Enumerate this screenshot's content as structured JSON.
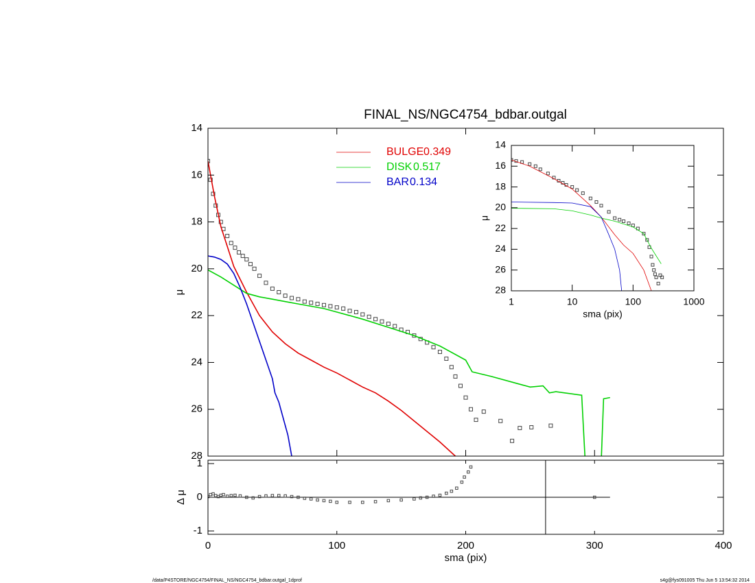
{
  "chart_data": [
    {
      "type": "line",
      "title": "FINAL_NS/NGC4754_bdbar.outgal",
      "ylabel": "μ",
      "xlim": [
        0,
        400
      ],
      "xticks": [
        0,
        100,
        200,
        300,
        400
      ],
      "ylim": [
        28,
        14
      ],
      "yticks": [
        14,
        16,
        18,
        20,
        22,
        24,
        26,
        28
      ],
      "points": {
        "x": [
          0,
          2,
          4,
          6,
          8,
          10,
          12,
          15,
          18,
          21,
          24,
          27,
          30,
          33,
          36,
          40,
          45,
          50,
          55,
          60,
          65,
          70,
          75,
          80,
          85,
          90,
          95,
          100,
          105,
          110,
          115,
          120,
          125,
          130,
          135,
          140,
          145,
          150,
          155,
          160,
          165,
          170,
          175,
          180,
          185,
          189,
          192,
          196,
          200,
          204,
          208,
          214,
          227,
          236,
          242,
          251,
          266
        ],
        "values": [
          15.4,
          16.2,
          16.8,
          17.3,
          17.7,
          18.0,
          18.3,
          18.6,
          18.9,
          19.1,
          19.3,
          19.45,
          19.6,
          19.8,
          20.0,
          20.3,
          20.6,
          20.85,
          21.0,
          21.15,
          21.25,
          21.3,
          21.4,
          21.45,
          21.5,
          21.55,
          21.6,
          21.65,
          21.7,
          21.8,
          21.85,
          21.95,
          22.05,
          22.15,
          22.25,
          22.35,
          22.45,
          22.6,
          22.7,
          22.85,
          23.0,
          23.15,
          23.35,
          23.55,
          23.84,
          24.2,
          24.6,
          25.0,
          25.5,
          26.0,
          26.45,
          26.1,
          26.5,
          27.35,
          26.8,
          26.77,
          26.7
        ]
      },
      "series": [
        {
          "name": "BULGE",
          "fraction": 0.349,
          "color": "#e00000",
          "x": [
            0,
            5,
            10,
            20,
            30,
            40,
            50,
            60,
            70,
            80,
            90,
            100,
            110,
            120,
            130,
            140,
            150,
            160,
            170,
            180,
            190,
            192
          ],
          "values": [
            15.4,
            16.9,
            18.2,
            19.9,
            21.0,
            22.0,
            22.7,
            23.2,
            23.6,
            23.9,
            24.2,
            24.45,
            24.75,
            25.05,
            25.3,
            25.65,
            26.05,
            26.5,
            26.95,
            27.4,
            27.9,
            28.0
          ]
        },
        {
          "name": "DISK",
          "fraction": 0.517,
          "color": "#00d000",
          "x": [
            0,
            10,
            20,
            30,
            40,
            50,
            60,
            70,
            80,
            90,
            100,
            120,
            140,
            160,
            180,
            200,
            205,
            220,
            240,
            250,
            260,
            265,
            270,
            290,
            293,
            null,
            305,
            307,
            312
          ],
          "values": [
            20.05,
            20.35,
            20.7,
            21.05,
            21.2,
            21.3,
            21.4,
            21.5,
            21.6,
            21.7,
            21.85,
            22.15,
            22.5,
            22.85,
            23.3,
            23.9,
            24.4,
            24.6,
            24.9,
            25.05,
            25.0,
            25.3,
            25.25,
            25.4,
            28.5,
            null,
            28.5,
            25.55,
            25.5
          ]
        },
        {
          "name": "BAR",
          "fraction": 0.134,
          "color": "#0000c8",
          "x": [
            0,
            5,
            10,
            15,
            20,
            25,
            30,
            35,
            40,
            45,
            50,
            52,
            55,
            58,
            62,
            65
          ],
          "values": [
            19.45,
            19.5,
            19.6,
            19.8,
            20.2,
            20.8,
            21.5,
            22.3,
            23.1,
            23.9,
            24.7,
            25.3,
            25.7,
            26.3,
            27.1,
            28.0
          ]
        }
      ]
    },
    {
      "type": "scatter",
      "ylabel": "Δ μ",
      "xlabel": "sma (pix)",
      "xlim": [
        0,
        400
      ],
      "xticks": [
        0,
        100,
        200,
        300,
        400
      ],
      "ylim": [
        -1.1,
        1.1
      ],
      "yticks": [
        -1,
        0,
        1
      ],
      "vline": 262,
      "x": [
        0,
        2,
        4,
        6,
        8,
        10,
        12,
        15,
        18,
        21,
        25,
        30,
        35,
        40,
        45,
        50,
        55,
        60,
        65,
        70,
        75,
        80,
        85,
        90,
        95,
        100,
        110,
        120,
        130,
        140,
        150,
        160,
        165,
        170,
        175,
        180,
        185,
        189,
        193,
        197,
        199,
        202,
        204,
        300
      ],
      "values": [
        0.02,
        0.08,
        0.1,
        0.05,
        0.02,
        0.06,
        0.08,
        0.03,
        0.05,
        0.06,
        0.04,
        0.0,
        -0.02,
        0.02,
        0.04,
        0.05,
        0.05,
        0.04,
        0.02,
        0.0,
        -0.03,
        -0.05,
        -0.08,
        -0.1,
        -0.12,
        -0.15,
        -0.15,
        -0.15,
        -0.13,
        -0.1,
        -0.08,
        -0.05,
        -0.02,
        0.0,
        0.03,
        0.06,
        0.12,
        0.18,
        0.27,
        0.45,
        0.6,
        0.75,
        0.9,
        0.0
      ]
    },
    {
      "type": "line",
      "ylabel": "μ",
      "xlabel": "sma (pix)",
      "xlog": true,
      "xlim": [
        1,
        1000
      ],
      "xticks": [
        1,
        10,
        100,
        1000
      ],
      "ylim": [
        28,
        14
      ],
      "yticks": [
        14,
        16,
        18,
        20,
        22,
        24,
        26,
        28
      ],
      "points": {
        "x": [
          1,
          1.2,
          1.5,
          2,
          2.5,
          3,
          4,
          5,
          6,
          7,
          8,
          10,
          12,
          15,
          20,
          25,
          30,
          40,
          50,
          60,
          70,
          85,
          100,
          120,
          150,
          170,
          185,
          200,
          210,
          220,
          230,
          240,
          260,
          280,
          300
        ],
        "values": [
          15.4,
          15.5,
          15.6,
          15.8,
          16.0,
          16.3,
          16.7,
          17.1,
          17.4,
          17.6,
          17.8,
          18.0,
          18.3,
          18.6,
          19.1,
          19.45,
          19.8,
          20.4,
          21.0,
          21.15,
          21.3,
          21.5,
          21.7,
          22.0,
          22.5,
          23.1,
          23.8,
          24.7,
          25.5,
          26.0,
          26.4,
          26.7,
          27.3,
          26.5,
          26.7
        ]
      },
      "series": [
        {
          "color": "#e00000",
          "x": [
            1,
            2,
            5,
            10,
            20,
            30,
            50,
            70,
            100,
            150,
            200
          ],
          "values": [
            15.4,
            16.0,
            17.2,
            18.2,
            19.8,
            20.9,
            22.6,
            23.6,
            24.4,
            26.0,
            28.0
          ]
        },
        {
          "color": "#00d000",
          "x": [
            1,
            5,
            10,
            20,
            30,
            50,
            100,
            150,
            200,
            290
          ],
          "values": [
            20.05,
            20.1,
            20.3,
            20.7,
            21.0,
            21.3,
            21.85,
            22.5,
            23.9,
            25.4
          ]
        },
        {
          "color": "#0000c8",
          "x": [
            1,
            5,
            10,
            20,
            30,
            40,
            50,
            60,
            65
          ],
          "values": [
            19.45,
            19.5,
            19.55,
            19.9,
            20.9,
            22.6,
            24.0,
            26.0,
            28.0
          ]
        }
      ]
    }
  ],
  "footer": {
    "left": "/data/P4STORE/NGC4754/FINAL_NS/NGC4754_bdbar.outgal_1dprof",
    "right": "s4g@fys091005  Thu Jun  5 13:54:32 2014"
  }
}
